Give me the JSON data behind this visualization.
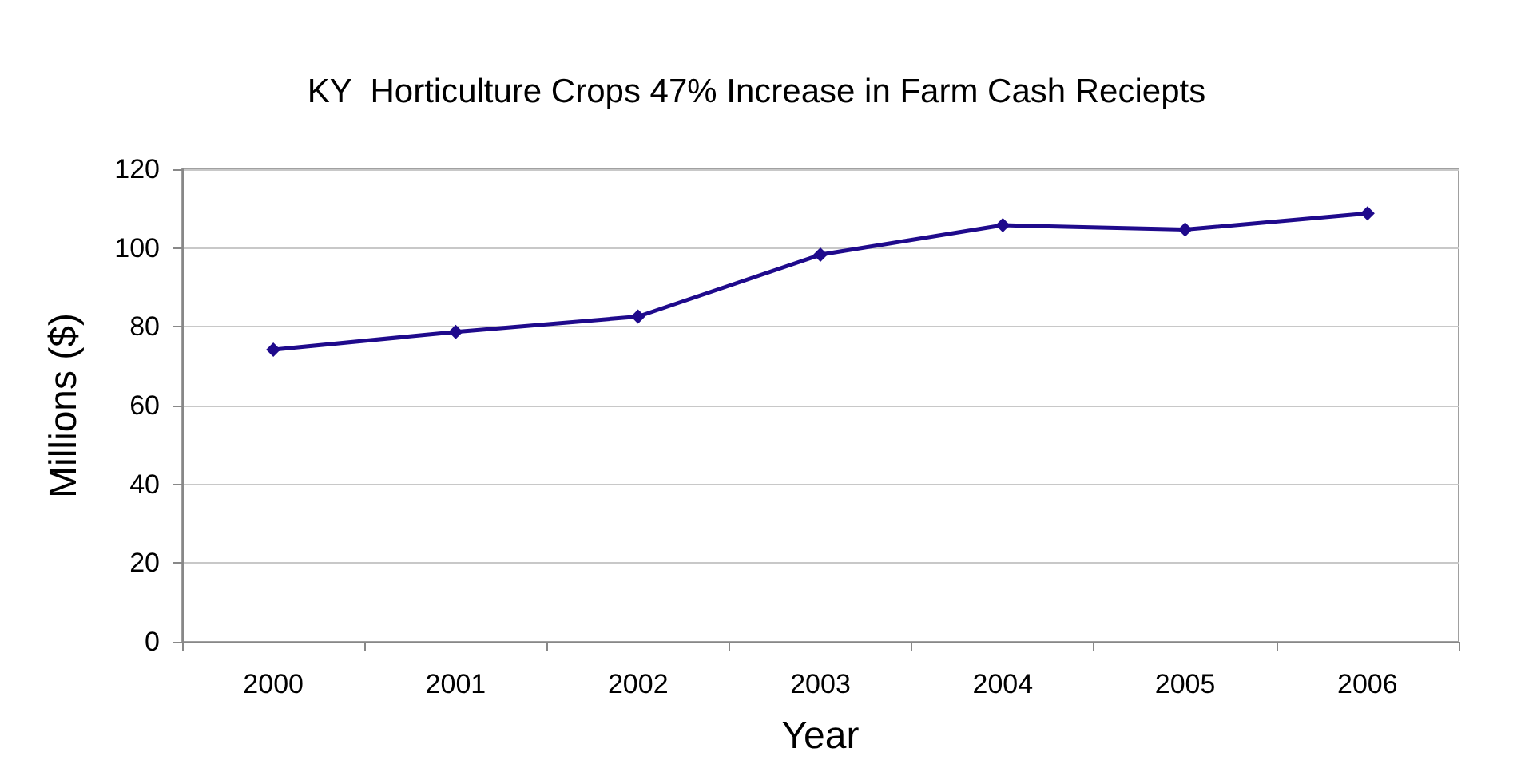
{
  "chart_data": {
    "type": "line",
    "title": "KY  Horticulture Crops 47% Increase in Farm Cash Reciepts",
    "xlabel": "Year",
    "ylabel": "Millions ($)",
    "categories": [
      "2000",
      "2001",
      "2002",
      "2003",
      "2004",
      "2005",
      "2006"
    ],
    "series": [
      {
        "color": "#1f0a8c",
        "values": [
          74.2,
          78.7,
          82.6,
          98.3,
          105.8,
          104.7,
          108.8
        ]
      }
    ],
    "ylim": [
      0,
      120
    ],
    "yticks": [
      0,
      20,
      40,
      60,
      80,
      100,
      120
    ],
    "grid": "y",
    "marker": "diamond",
    "line_style": "solid"
  }
}
